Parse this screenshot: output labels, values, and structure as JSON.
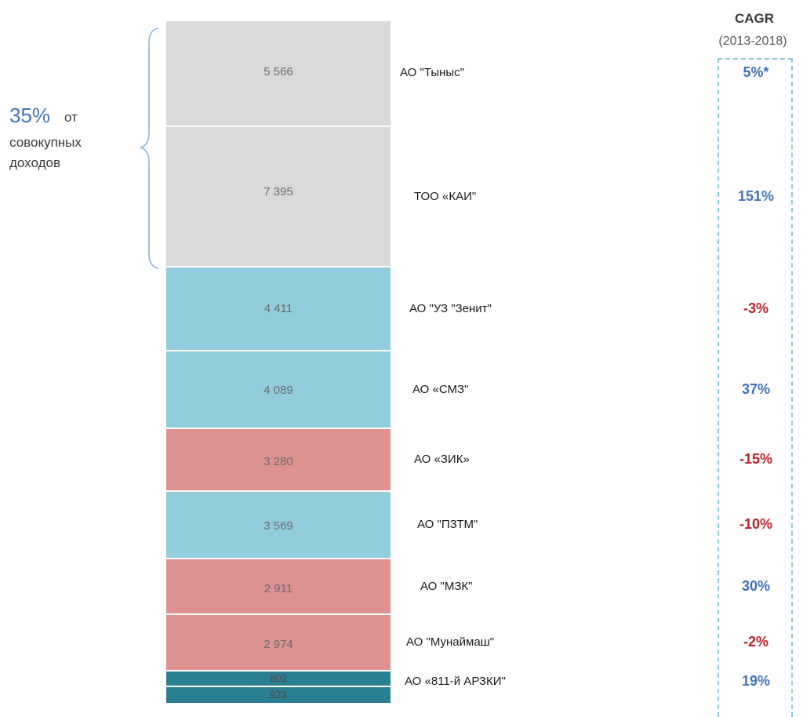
{
  "chart_data": {
    "type": "bar",
    "layout": "stacked-single-column",
    "categories": [
      "АО \"Тыныс\"",
      "ТОО «КАИ\"",
      "АО \"УЗ \"Зенит\"",
      "АО «СМЗ\"",
      "АО «ЗИК»",
      "АО \"ПЗТМ\"",
      "АО \"МЗК\"",
      "АО \"Мунаймаш\"",
      "АО «811-й АРЗКИ\"",
      ""
    ],
    "values": [
      5566,
      7395,
      4411,
      4089,
      3280,
      3569,
      2911,
      2974,
      802,
      923
    ],
    "value_labels": [
      "5 566",
      "7 395",
      "4 411",
      "4 089",
      "3 280",
      "3 569",
      "2 911",
      "2 974",
      "802",
      "923"
    ],
    "segment_colors": [
      "#d9d9d9",
      "#d9d9d9",
      "#92cddd",
      "#92cddd",
      "#dd9191",
      "#92cddd",
      "#dd9191",
      "#dd9191",
      "#2b7f92",
      "#2b7f92"
    ],
    "cagr_title": "CAGR",
    "cagr_period": "(2013-2018)",
    "cagr_labels": [
      "5%*",
      "151%",
      "-3%",
      "37%",
      "-15%",
      "-10%",
      "30%",
      "-2%",
      "19%"
    ],
    "cagr_colors": [
      "#3e73b8",
      "#3e73b8",
      "#c0212b",
      "#3e73b8",
      "#c0212b",
      "#c0212b",
      "#3e73b8",
      "#c0212b",
      "#3e73b8"
    ]
  },
  "annotation": {
    "percent": "35%",
    "suffix": "от",
    "line2": "совокупных",
    "line3": "доходов"
  }
}
